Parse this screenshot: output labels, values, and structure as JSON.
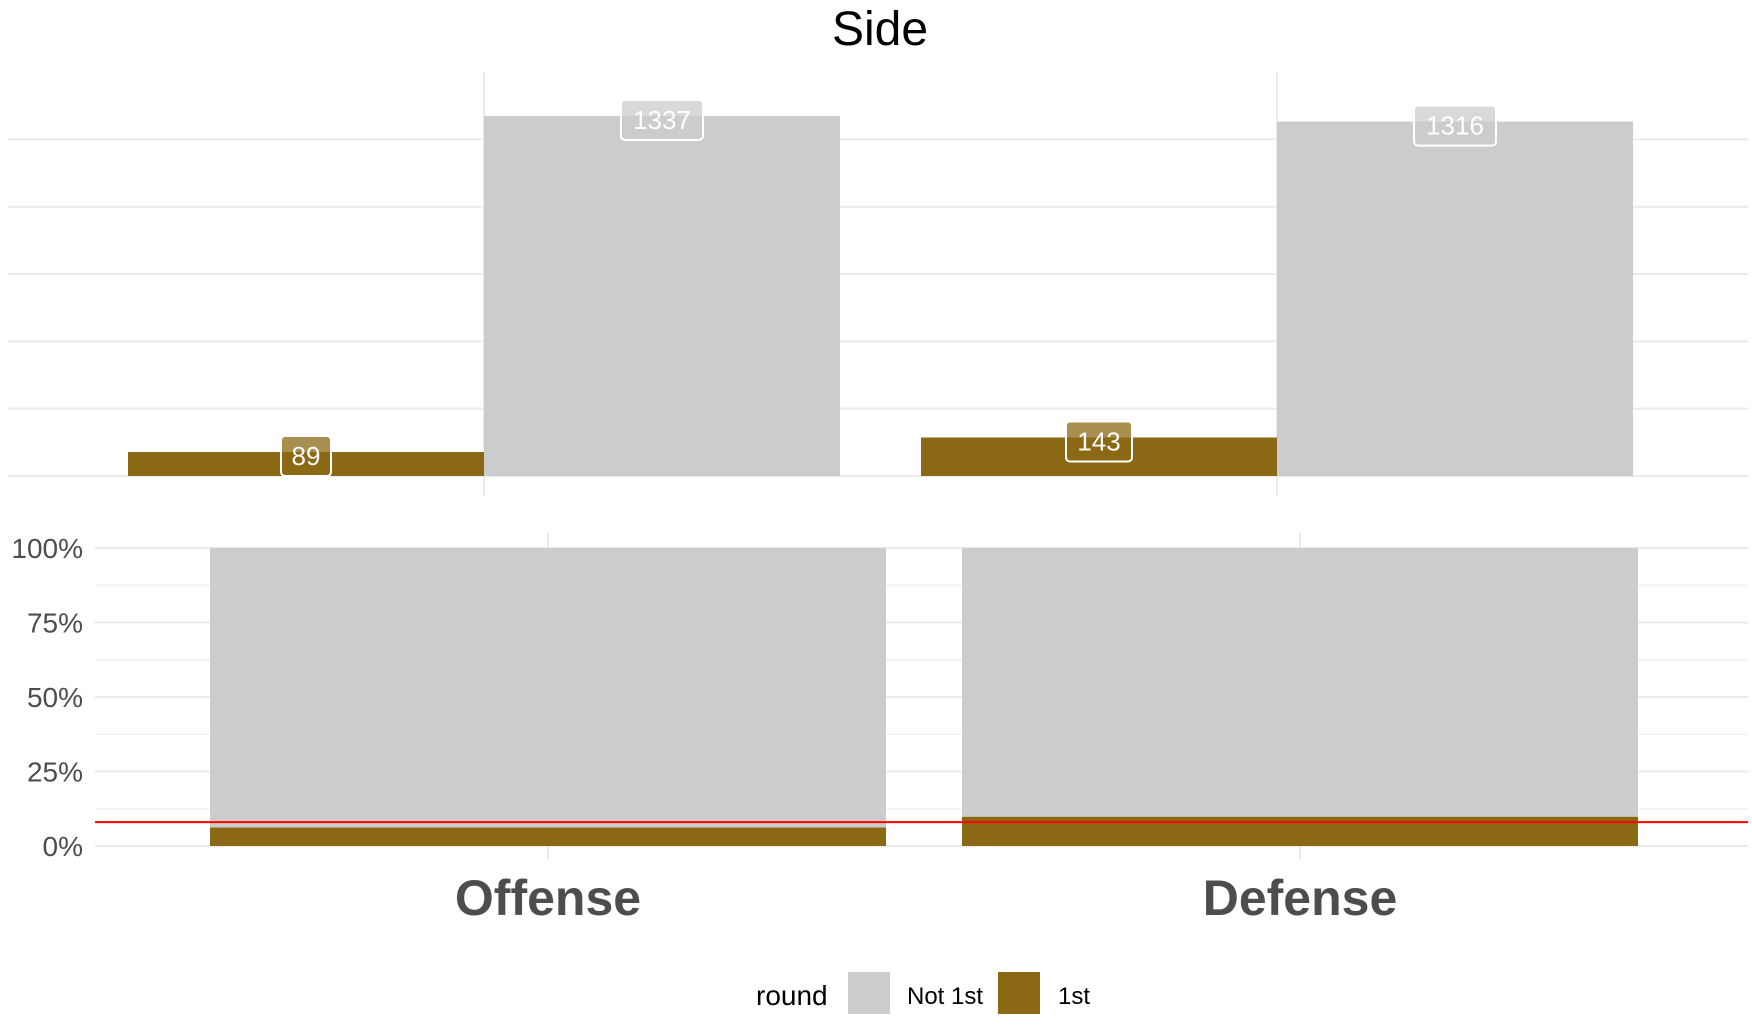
{
  "chart_data": [
    {
      "type": "bar",
      "title": "Side",
      "categories": [
        "Offense",
        "Defense"
      ],
      "series": [
        {
          "name": "1st",
          "values": [
            89,
            143
          ]
        },
        {
          "name": "Not 1st",
          "values": [
            1337,
            1316
          ]
        }
      ],
      "data_labels": {
        "1st": [
          "89",
          "143"
        ],
        "Not 1st": [
          "1337",
          "1316"
        ]
      },
      "ylim": [
        0,
        1400
      ],
      "grid": true
    },
    {
      "type": "bar",
      "stacked": "percent",
      "categories": [
        "Offense",
        "Defense"
      ],
      "series": [
        {
          "name": "1st",
          "values": [
            6.2,
            9.8
          ]
        },
        {
          "name": "Not 1st",
          "values": [
            93.8,
            90.2
          ]
        }
      ],
      "yticks": [
        "0%",
        "25%",
        "50%",
        "75%",
        "100%"
      ],
      "ytick_values": [
        0,
        25,
        50,
        75,
        100
      ],
      "ylim": [
        0,
        100
      ],
      "reference_line": 8,
      "grid": true
    }
  ],
  "legend": {
    "title": "round",
    "items": [
      {
        "label": "Not 1st",
        "color": "#cccccc"
      },
      {
        "label": "1st",
        "color": "#8b6914"
      }
    ],
    "placement": "bottom"
  },
  "colors": {
    "not_first": "#cccccc",
    "first": "#8b6914",
    "reference": "#ff0000"
  }
}
